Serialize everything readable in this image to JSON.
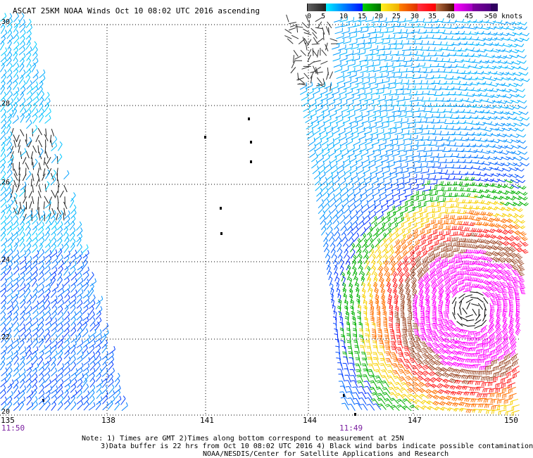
{
  "title": "ASCAT 25KM NOAA Winds Oct 10 08:02 UTC 2016 ascending",
  "legend": {
    "labels": [
      "0",
      "5",
      "10",
      "15",
      "20",
      "25",
      "30",
      "35",
      "40",
      "45",
      ">50 knots"
    ],
    "segments": [
      {
        "from": "#606060",
        "to": "#202020"
      },
      {
        "from": "#00f0ff",
        "to": "#0010ff"
      },
      {
        "from": "#00d000",
        "to": "#007000"
      },
      {
        "from": "#fff020",
        "to": "#f0b000"
      },
      {
        "from": "#ff8000",
        "to": "#e03000"
      },
      {
        "from": "#ff3040",
        "to": "#ff0000"
      },
      {
        "from": "#c07040",
        "to": "#401000"
      },
      {
        "from": "#ff00ff",
        "to": "#a000c0"
      },
      {
        "from": "#8000a0",
        "to": "#500080"
      },
      {
        "from": "#300060",
        "to": "#300060"
      }
    ]
  },
  "axes": {
    "lat_labels": [
      "30",
      "28",
      "26",
      "24",
      "22",
      "20"
    ],
    "lon_labels": [
      "135",
      "138",
      "141",
      "144",
      "147",
      "150"
    ]
  },
  "times": [
    "11:50",
    "11:49"
  ],
  "notes": [
    "Note: 1) Times are GMT 2)Times along bottom correspond to measurement at 25N",
    "3)Data buffer is 22 hrs from Oct 10 08:02 UTC 2016 4) Black wind barbs indicate possible contamination",
    "NOAA/NESDIS/Center for Satellite Applications and Research"
  ]
}
